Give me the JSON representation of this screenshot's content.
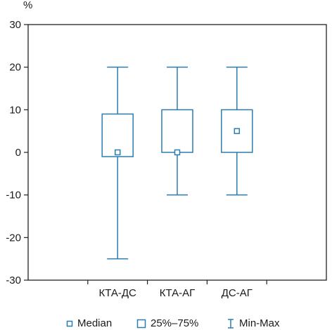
{
  "chart_data": {
    "type": "box",
    "ylabel": "%",
    "ylim": [
      -30,
      30
    ],
    "yticks": [
      30,
      20,
      10,
      0,
      -10,
      -20,
      -30
    ],
    "categories": [
      "КТА-ДС",
      "КТА-АГ",
      "ДС-АГ"
    ],
    "boxes": [
      {
        "category": "КТА-ДС",
        "min": -25,
        "q1": -1,
        "median": 0,
        "q3": 9,
        "max": 20
      },
      {
        "category": "КТА-АГ",
        "min": -10,
        "q1": 0,
        "median": 0,
        "q3": 10,
        "max": 20
      },
      {
        "category": "ДС-АГ",
        "min": -10,
        "q1": 0,
        "median": 5,
        "q3": 10,
        "max": 20
      }
    ],
    "grid": false,
    "legend_position": "bottom",
    "colors": {
      "series": "#2a7db0",
      "axis": "#222222",
      "text": "#1a1a1a"
    }
  },
  "legend": {
    "median": "Median",
    "quartiles": "25%–75%",
    "minmax": "Min-Max"
  }
}
